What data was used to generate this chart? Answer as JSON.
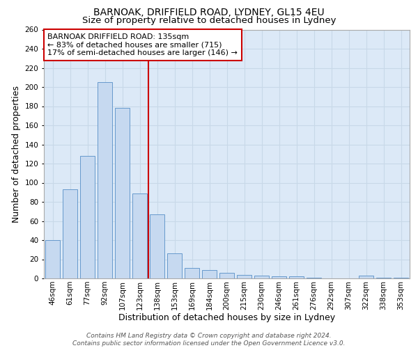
{
  "title_line1": "BARNOAK, DRIFFIELD ROAD, LYDNEY, GL15 4EU",
  "title_line2": "Size of property relative to detached houses in Lydney",
  "xlabel": "Distribution of detached houses by size in Lydney",
  "ylabel": "Number of detached properties",
  "categories": [
    "46sqm",
    "61sqm",
    "77sqm",
    "92sqm",
    "107sqm",
    "123sqm",
    "138sqm",
    "153sqm",
    "169sqm",
    "184sqm",
    "200sqm",
    "215sqm",
    "230sqm",
    "246sqm",
    "261sqm",
    "276sqm",
    "292sqm",
    "307sqm",
    "322sqm",
    "338sqm",
    "353sqm"
  ],
  "values": [
    40,
    93,
    128,
    205,
    178,
    89,
    67,
    26,
    11,
    9,
    6,
    4,
    3,
    2,
    2,
    1,
    0,
    0,
    3,
    1,
    1
  ],
  "bar_color": "#c6d9f0",
  "bar_edge_color": "#6699cc",
  "grid_color": "#c8d8e8",
  "bg_color": "#dce9f7",
  "vline_color": "#cc0000",
  "vline_x": 5.5,
  "annotation_text": "BARNOAK DRIFFIELD ROAD: 135sqm\n← 83% of detached houses are smaller (715)\n17% of semi-detached houses are larger (146) →",
  "annotation_box_color": "#ffffff",
  "annotation_box_edge": "#cc0000",
  "ylim": [
    0,
    260
  ],
  "yticks": [
    0,
    20,
    40,
    60,
    80,
    100,
    120,
    140,
    160,
    180,
    200,
    220,
    240,
    260
  ],
  "footer": "Contains HM Land Registry data © Crown copyright and database right 2024.\nContains public sector information licensed under the Open Government Licence v3.0.",
  "title_fontsize": 10,
  "subtitle_fontsize": 9.5,
  "tick_fontsize": 7.5,
  "xlabel_fontsize": 9,
  "ylabel_fontsize": 9,
  "annotation_fontsize": 8
}
